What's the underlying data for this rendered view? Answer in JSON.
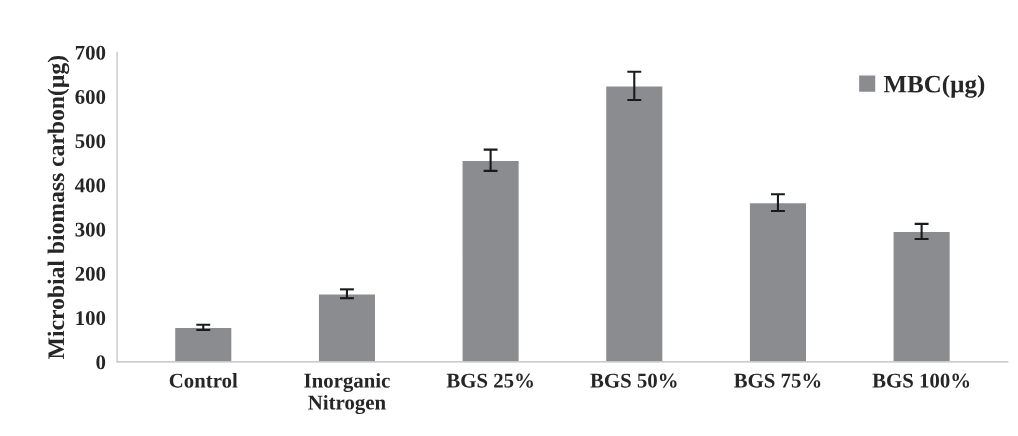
{
  "chart_data": {
    "type": "bar",
    "ylabel": "Microbial biomass carbon(µg)",
    "categories": [
      "Control",
      "Inorganic\nNitrogen",
      "BGS 25%",
      "BGS 50%",
      "BGS 75%",
      "BGS 100%"
    ],
    "series": [
      {
        "name": "MBC(µg)",
        "color": "#8b8c90",
        "values": [
          78,
          154,
          456,
          624,
          360,
          295
        ],
        "errors": [
          6,
          10,
          24,
          32,
          19,
          17
        ]
      }
    ],
    "ylim": [
      0,
      700
    ],
    "yticks": [
      0,
      100,
      200,
      300,
      400,
      500,
      600,
      700
    ],
    "grid": false,
    "legend": "top right"
  }
}
